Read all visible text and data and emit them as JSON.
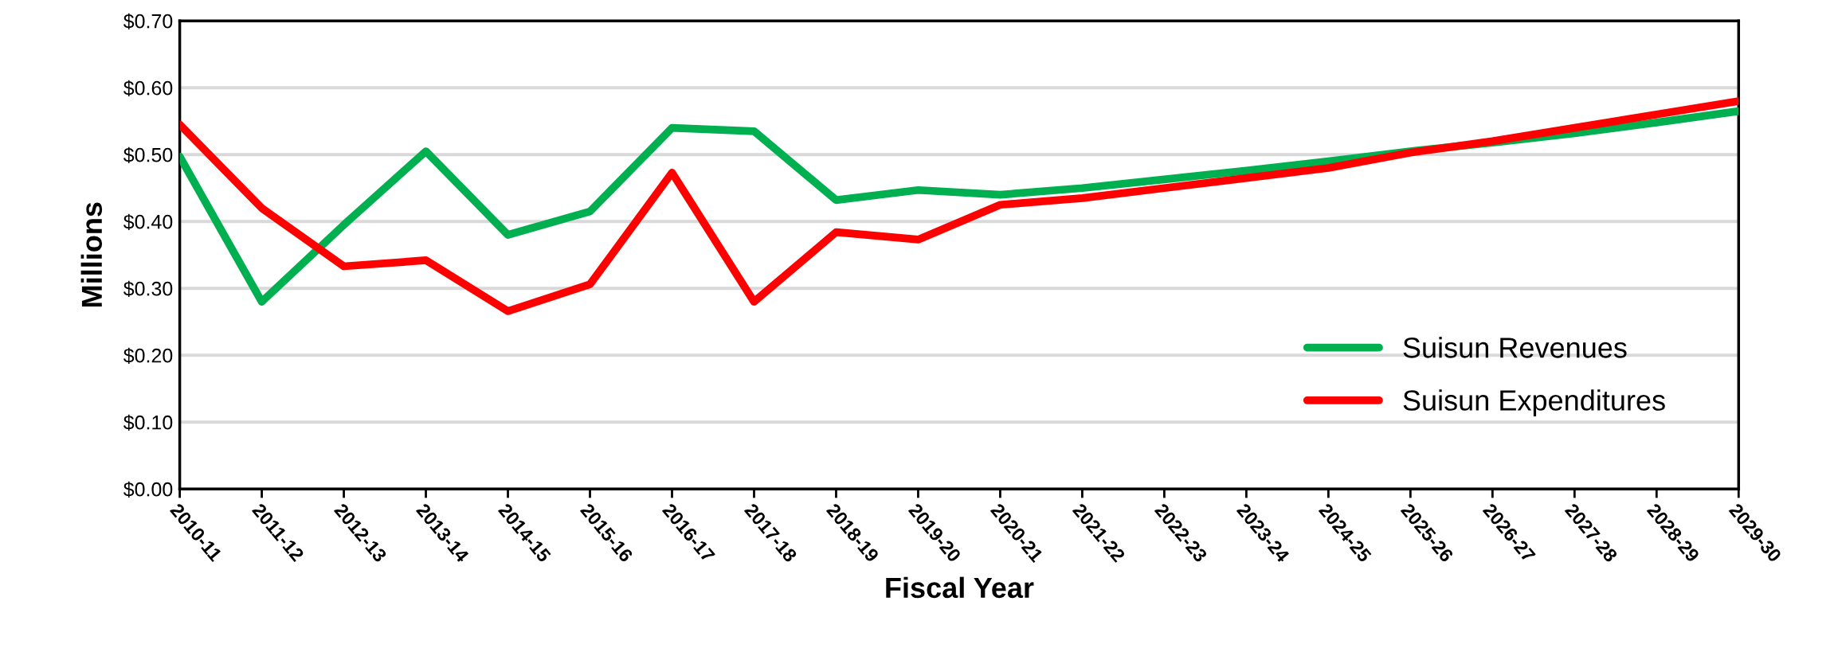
{
  "chart_data": {
    "type": "line",
    "xlabel": "Fiscal Year",
    "ylabel": "Millions",
    "categories": [
      "2010-11",
      "2011-12",
      "2012-13",
      "2013-14",
      "2014-15",
      "2015-16",
      "2016-17",
      "2017-18",
      "2018-19",
      "2019-20",
      "2020-21",
      "2021-22",
      "2022-23",
      "2023-24",
      "2024-25",
      "2025-26",
      "2026-27",
      "2027-28",
      "2028-29",
      "2029-30"
    ],
    "series": [
      {
        "name": "Suisun Revenues",
        "color": "#00b050",
        "values": [
          0.497,
          0.28,
          0.395,
          0.505,
          0.38,
          0.415,
          0.54,
          0.535,
          0.432,
          0.447,
          0.44,
          0.45,
          0.463,
          0.476,
          0.49,
          0.505,
          0.518,
          0.532,
          0.548,
          0.565
        ]
      },
      {
        "name": "Suisun Expenditures",
        "color": "#ff0000",
        "values": [
          0.545,
          0.42,
          0.333,
          0.342,
          0.266,
          0.306,
          0.473,
          0.28,
          0.384,
          0.373,
          0.425,
          0.435,
          0.45,
          0.465,
          0.48,
          0.503,
          0.52,
          0.54,
          0.56,
          0.58
        ]
      }
    ],
    "ylim": [
      0,
      0.7
    ],
    "yticks": [
      {
        "value": 0,
        "label": "$0.00"
      },
      {
        "value": 0.1,
        "label": "$0.10"
      },
      {
        "value": 0.2,
        "label": "$0.20"
      },
      {
        "value": 0.3,
        "label": "$0.30"
      },
      {
        "value": 0.4,
        "label": "$0.40"
      },
      {
        "value": 0.5,
        "label": "$0.50"
      },
      {
        "value": 0.6,
        "label": "$0.60"
      },
      {
        "value": 0.7,
        "label": "$0.70"
      }
    ],
    "grid": "y",
    "legend": "bottom right",
    "marker": "none",
    "line_style": "solid"
  }
}
